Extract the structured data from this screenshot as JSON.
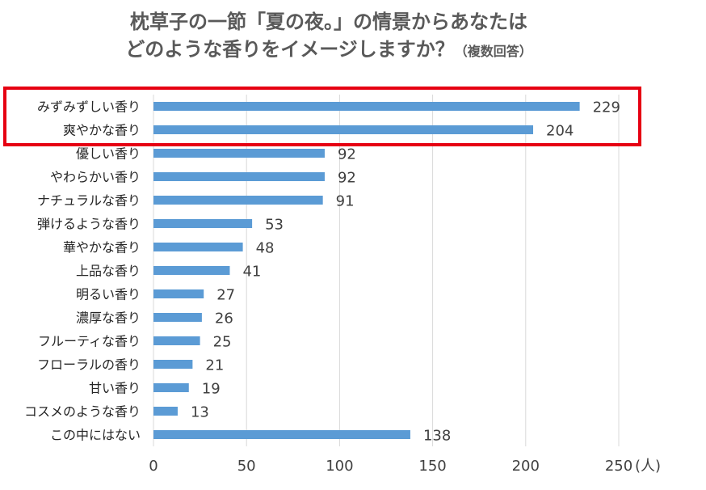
{
  "title": {
    "line1": "枕草子の一節「夏の夜。」の情景からあなたは",
    "line2": "どのような香りをイメージしますか？",
    "line2_suffix": "（複数回答）"
  },
  "colors": {
    "bar": "#5b9bd5",
    "highlight": "#e60012",
    "grid": "#d9d9d9"
  },
  "chart_data": {
    "type": "bar",
    "orientation": "horizontal",
    "categories": [
      "みずみずしい香り",
      "爽やかな香り",
      "優しい香り",
      "やわらかい香り",
      "ナチュラルな香り",
      "弾けるような香り",
      "華やかな香り",
      "上品な香り",
      "明るい香り",
      "濃厚な香り",
      "フルーティな香り",
      "フローラルの香り",
      "甘い香り",
      "コスメのような香り",
      "この中にはない"
    ],
    "values": [
      229,
      204,
      92,
      92,
      91,
      53,
      48,
      41,
      27,
      26,
      25,
      21,
      19,
      13,
      138
    ],
    "xlim": [
      0,
      250
    ],
    "xticks": [
      "0",
      "50",
      "100",
      "150",
      "200",
      "250"
    ],
    "xlabel_unit": "(人)",
    "grid": "vertical",
    "highlighted_categories": [
      "みずみずしい香り",
      "爽やかな香り"
    ]
  }
}
